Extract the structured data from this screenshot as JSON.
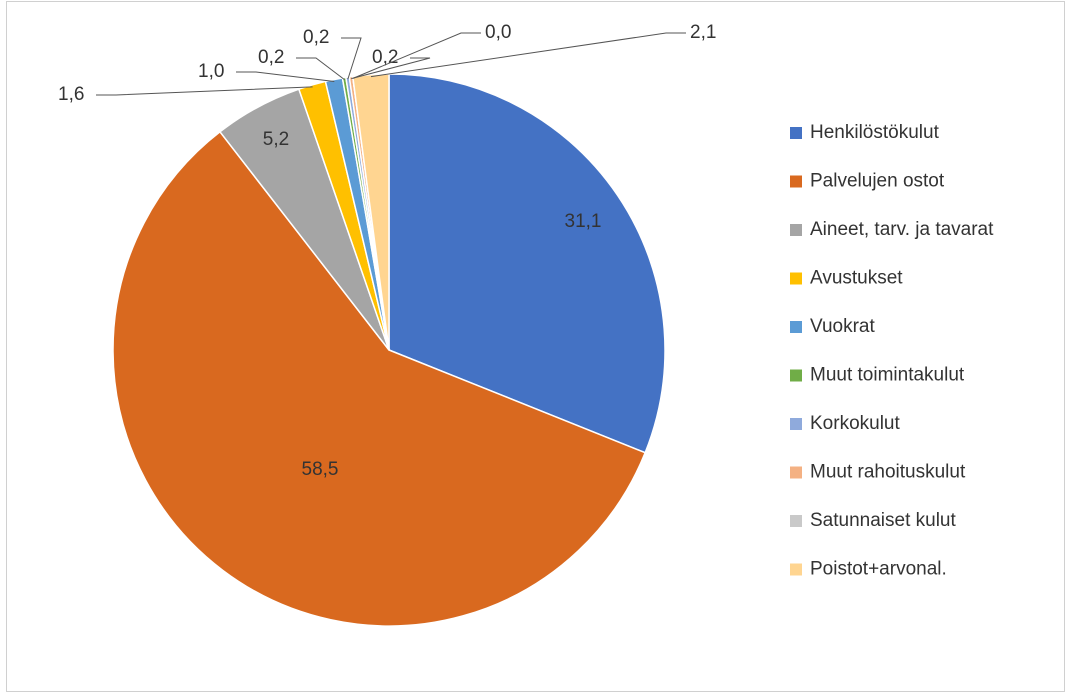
{
  "chart_data": {
    "type": "pie",
    "categories": [
      "Henkilöstökulut",
      "Palvelujen ostot",
      "Aineet, tarv. ja tavarat",
      "Avustukset",
      "Vuokrat",
      "Muut toimintakulut",
      "Korkokulut",
      "Muut rahoituskulut",
      "Satunnaiset kulut",
      "Poistot+arvonal."
    ],
    "values": [
      31.1,
      58.5,
      5.2,
      1.6,
      1.0,
      0.2,
      0.2,
      0.2,
      0.0,
      2.1
    ],
    "value_labels": [
      "31,1",
      "58,5",
      "5,2",
      "1,6",
      "1,0",
      "0,2",
      "0,2",
      "0,2",
      "0,0",
      "2,1"
    ],
    "colors": [
      "#4472c4",
      "#d9691f",
      "#a5a5a5",
      "#ffc000",
      "#5b9bd5",
      "#70ad47",
      "#8faadc",
      "#f4b183",
      "#c9c9c9",
      "#ffd591"
    ],
    "legend": "right"
  }
}
